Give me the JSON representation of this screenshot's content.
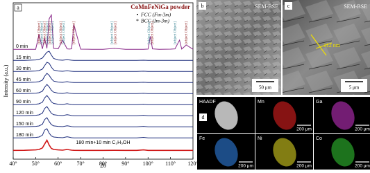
{
  "chart_data": {
    "type": "line",
    "panel_label": "a",
    "title": "CoMnFeNiGa powder",
    "legend": [
      {
        "symbol": "•",
        "label": "FCC (Fm-3m)"
      },
      {
        "symbol": "*",
        "label": "BCC (Im-3m)"
      }
    ],
    "x_label": "2θ",
    "y_label": "Intensity (a.u.)",
    "xlim": [
      40,
      120
    ],
    "xticks": [
      {
        "value": 40,
        "label": "40°"
      },
      {
        "value": 50,
        "label": "50°"
      },
      {
        "value": 60,
        "label": "60°"
      },
      {
        "value": 70,
        "label": "70°"
      },
      {
        "value": 80,
        "label": "80°"
      },
      {
        "value": 90,
        "label": "90°"
      },
      {
        "value": 100,
        "label": "100°"
      },
      {
        "value": 110,
        "label": "110°"
      },
      {
        "value": 120,
        "label": "120°"
      }
    ],
    "annotations": [
      {
        "text": "Co(100)",
        "x": 51.5
      },
      {
        "text": "Mn(411)",
        "x": 52.8
      },
      {
        "text": "Co(002)",
        "x": 54
      },
      {
        "text": "Ga(110)",
        "x": 55.2
      },
      {
        "text": "Co(101)",
        "x": 56.3
      },
      {
        "text": "Ni(111)",
        "x": 57.5
      },
      {
        "text": "Co(102)",
        "x": 61.2
      },
      {
        "text": "Mn(332)",
        "x": 62.5
      },
      {
        "text": "Ni(200)",
        "x": 67
      },
      {
        "text": "Co(102)",
        "x": 84
      },
      {
        "text": "Fe(200)",
        "x": 85.5
      },
      {
        "text": "Co(110)",
        "x": 100.5
      },
      {
        "text": "Ni(220)",
        "x": 101.8
      },
      {
        "text": "Fe(211)",
        "x": 112
      },
      {
        "text": "Co(103)",
        "x": 117
      }
    ],
    "x": [
      40,
      45,
      50,
      51.5,
      53,
      54,
      55,
      56,
      57,
      58,
      60,
      62,
      64,
      65,
      66,
      67,
      70,
      75,
      80,
      85,
      90,
      95,
      98,
      100,
      101,
      102,
      105,
      110,
      112,
      114,
      115,
      117,
      120
    ],
    "series": [
      {
        "name": "0 min",
        "color": "#8a2a8a",
        "values": [
          0.05,
          0.05,
          0.06,
          1.6,
          0.1,
          1.2,
          0.15,
          3.2,
          3.6,
          0.15,
          0.1,
          1.0,
          0.1,
          0.08,
          0.1,
          2.6,
          0.07,
          0.06,
          0.06,
          0.15,
          0.06,
          0.06,
          0.06,
          0.08,
          1.4,
          0.1,
          0.06,
          0.07,
          0.1,
          1.0,
          0.08,
          0.5,
          0.06
        ]
      },
      {
        "name": "15 min",
        "color": "#1a2a7a",
        "values": [
          0.05,
          0.06,
          0.1,
          0.15,
          0.3,
          0.6,
          0.9,
          1.0,
          0.6,
          0.25,
          0.1,
          0.07,
          0.12,
          0.1,
          0.07,
          0.06,
          0.05,
          0.05,
          0.05,
          0.06,
          0.05,
          0.05,
          0.07,
          0.05,
          0.05,
          0.05,
          0.05,
          0.05,
          0.05,
          0.05,
          0.05,
          0.05,
          0.05
        ]
      },
      {
        "name": "30 min",
        "color": "#1a2a7a",
        "values": [
          0.05,
          0.06,
          0.1,
          0.14,
          0.3,
          0.65,
          1.0,
          0.9,
          0.5,
          0.2,
          0.1,
          0.07,
          0.13,
          0.1,
          0.07,
          0.06,
          0.05,
          0.05,
          0.05,
          0.06,
          0.05,
          0.05,
          0.08,
          0.05,
          0.05,
          0.05,
          0.05,
          0.05,
          0.05,
          0.05,
          0.05,
          0.05,
          0.05
        ]
      },
      {
        "name": "45 min",
        "color": "#1a2a7a",
        "values": [
          0.05,
          0.06,
          0.1,
          0.14,
          0.3,
          0.7,
          1.0,
          0.8,
          0.45,
          0.2,
          0.1,
          0.07,
          0.14,
          0.1,
          0.07,
          0.06,
          0.05,
          0.05,
          0.05,
          0.06,
          0.05,
          0.05,
          0.08,
          0.05,
          0.05,
          0.05,
          0.05,
          0.05,
          0.05,
          0.05,
          0.05,
          0.05,
          0.05
        ]
      },
      {
        "name": "60 min",
        "color": "#1a2a7a",
        "values": [
          0.05,
          0.06,
          0.1,
          0.14,
          0.3,
          0.7,
          1.0,
          0.75,
          0.4,
          0.2,
          0.1,
          0.07,
          0.14,
          0.1,
          0.07,
          0.06,
          0.05,
          0.05,
          0.05,
          0.06,
          0.05,
          0.05,
          0.09,
          0.05,
          0.05,
          0.05,
          0.05,
          0.05,
          0.05,
          0.05,
          0.05,
          0.05,
          0.05
        ]
      },
      {
        "name": "90 min",
        "color": "#1a2a7a",
        "values": [
          0.05,
          0.06,
          0.1,
          0.14,
          0.3,
          0.75,
          1.0,
          0.7,
          0.35,
          0.18,
          0.1,
          0.07,
          0.15,
          0.11,
          0.07,
          0.06,
          0.05,
          0.05,
          0.05,
          0.06,
          0.05,
          0.05,
          0.1,
          0.05,
          0.05,
          0.05,
          0.05,
          0.05,
          0.05,
          0.05,
          0.05,
          0.05,
          0.05
        ]
      },
      {
        "name": "120 min",
        "color": "#1a2a7a",
        "values": [
          0.05,
          0.06,
          0.1,
          0.14,
          0.32,
          0.8,
          1.0,
          0.65,
          0.3,
          0.16,
          0.1,
          0.07,
          0.16,
          0.12,
          0.07,
          0.06,
          0.05,
          0.05,
          0.05,
          0.06,
          0.05,
          0.05,
          0.1,
          0.05,
          0.05,
          0.05,
          0.05,
          0.05,
          0.05,
          0.05,
          0.05,
          0.05,
          0.05
        ]
      },
      {
        "name": "150 min",
        "color": "#1a2a7a",
        "values": [
          0.05,
          0.06,
          0.1,
          0.14,
          0.32,
          0.8,
          1.0,
          0.6,
          0.28,
          0.15,
          0.1,
          0.07,
          0.16,
          0.12,
          0.07,
          0.06,
          0.05,
          0.05,
          0.05,
          0.06,
          0.05,
          0.05,
          0.1,
          0.05,
          0.05,
          0.05,
          0.05,
          0.05,
          0.05,
          0.05,
          0.05,
          0.05,
          0.05
        ]
      },
      {
        "name": "180 min",
        "color": "#1a2a7a",
        "values": [
          0.05,
          0.06,
          0.1,
          0.14,
          0.33,
          0.85,
          1.0,
          0.55,
          0.25,
          0.14,
          0.1,
          0.07,
          0.17,
          0.12,
          0.07,
          0.06,
          0.05,
          0.05,
          0.05,
          0.06,
          0.05,
          0.05,
          0.11,
          0.05,
          0.05,
          0.05,
          0.05,
          0.05,
          0.05,
          0.05,
          0.05,
          0.05,
          0.05
        ]
      },
      {
        "name": "180 min+10 min C₂H₅OH",
        "color": "#d01818",
        "values": [
          0.05,
          0.06,
          0.1,
          0.14,
          0.3,
          0.7,
          1.1,
          0.6,
          0.25,
          0.14,
          0.1,
          0.07,
          0.15,
          0.11,
          0.07,
          0.06,
          0.05,
          0.05,
          0.05,
          0.06,
          0.05,
          0.05,
          0.1,
          0.05,
          0.05,
          0.05,
          0.05,
          0.05,
          0.05,
          0.05,
          0.05,
          0.05,
          0.05
        ]
      }
    ]
  },
  "sem": [
    {
      "label": "b",
      "mode": "SEM-BSE",
      "scale": "50 μm"
    },
    {
      "label": "c",
      "mode": "SEM-BSE",
      "scale": "5 μm",
      "measure": "112 nm"
    }
  ],
  "eds": {
    "label": "d",
    "maps": [
      {
        "name": "HAADF",
        "color": "#d8d8d8"
      },
      {
        "name": "Mn",
        "scale": "200 μm",
        "color": "#e02020"
      },
      {
        "name": "Ga",
        "scale": "200 μm",
        "color": "#c030c0"
      },
      {
        "name": "Fe",
        "scale": "200 μm",
        "color": "#2f7fe0"
      },
      {
        "name": "Ni",
        "scale": "200 μm",
        "color": "#d8d020"
      },
      {
        "name": "Co",
        "scale": "200 μm",
        "color": "#30c030"
      }
    ]
  }
}
